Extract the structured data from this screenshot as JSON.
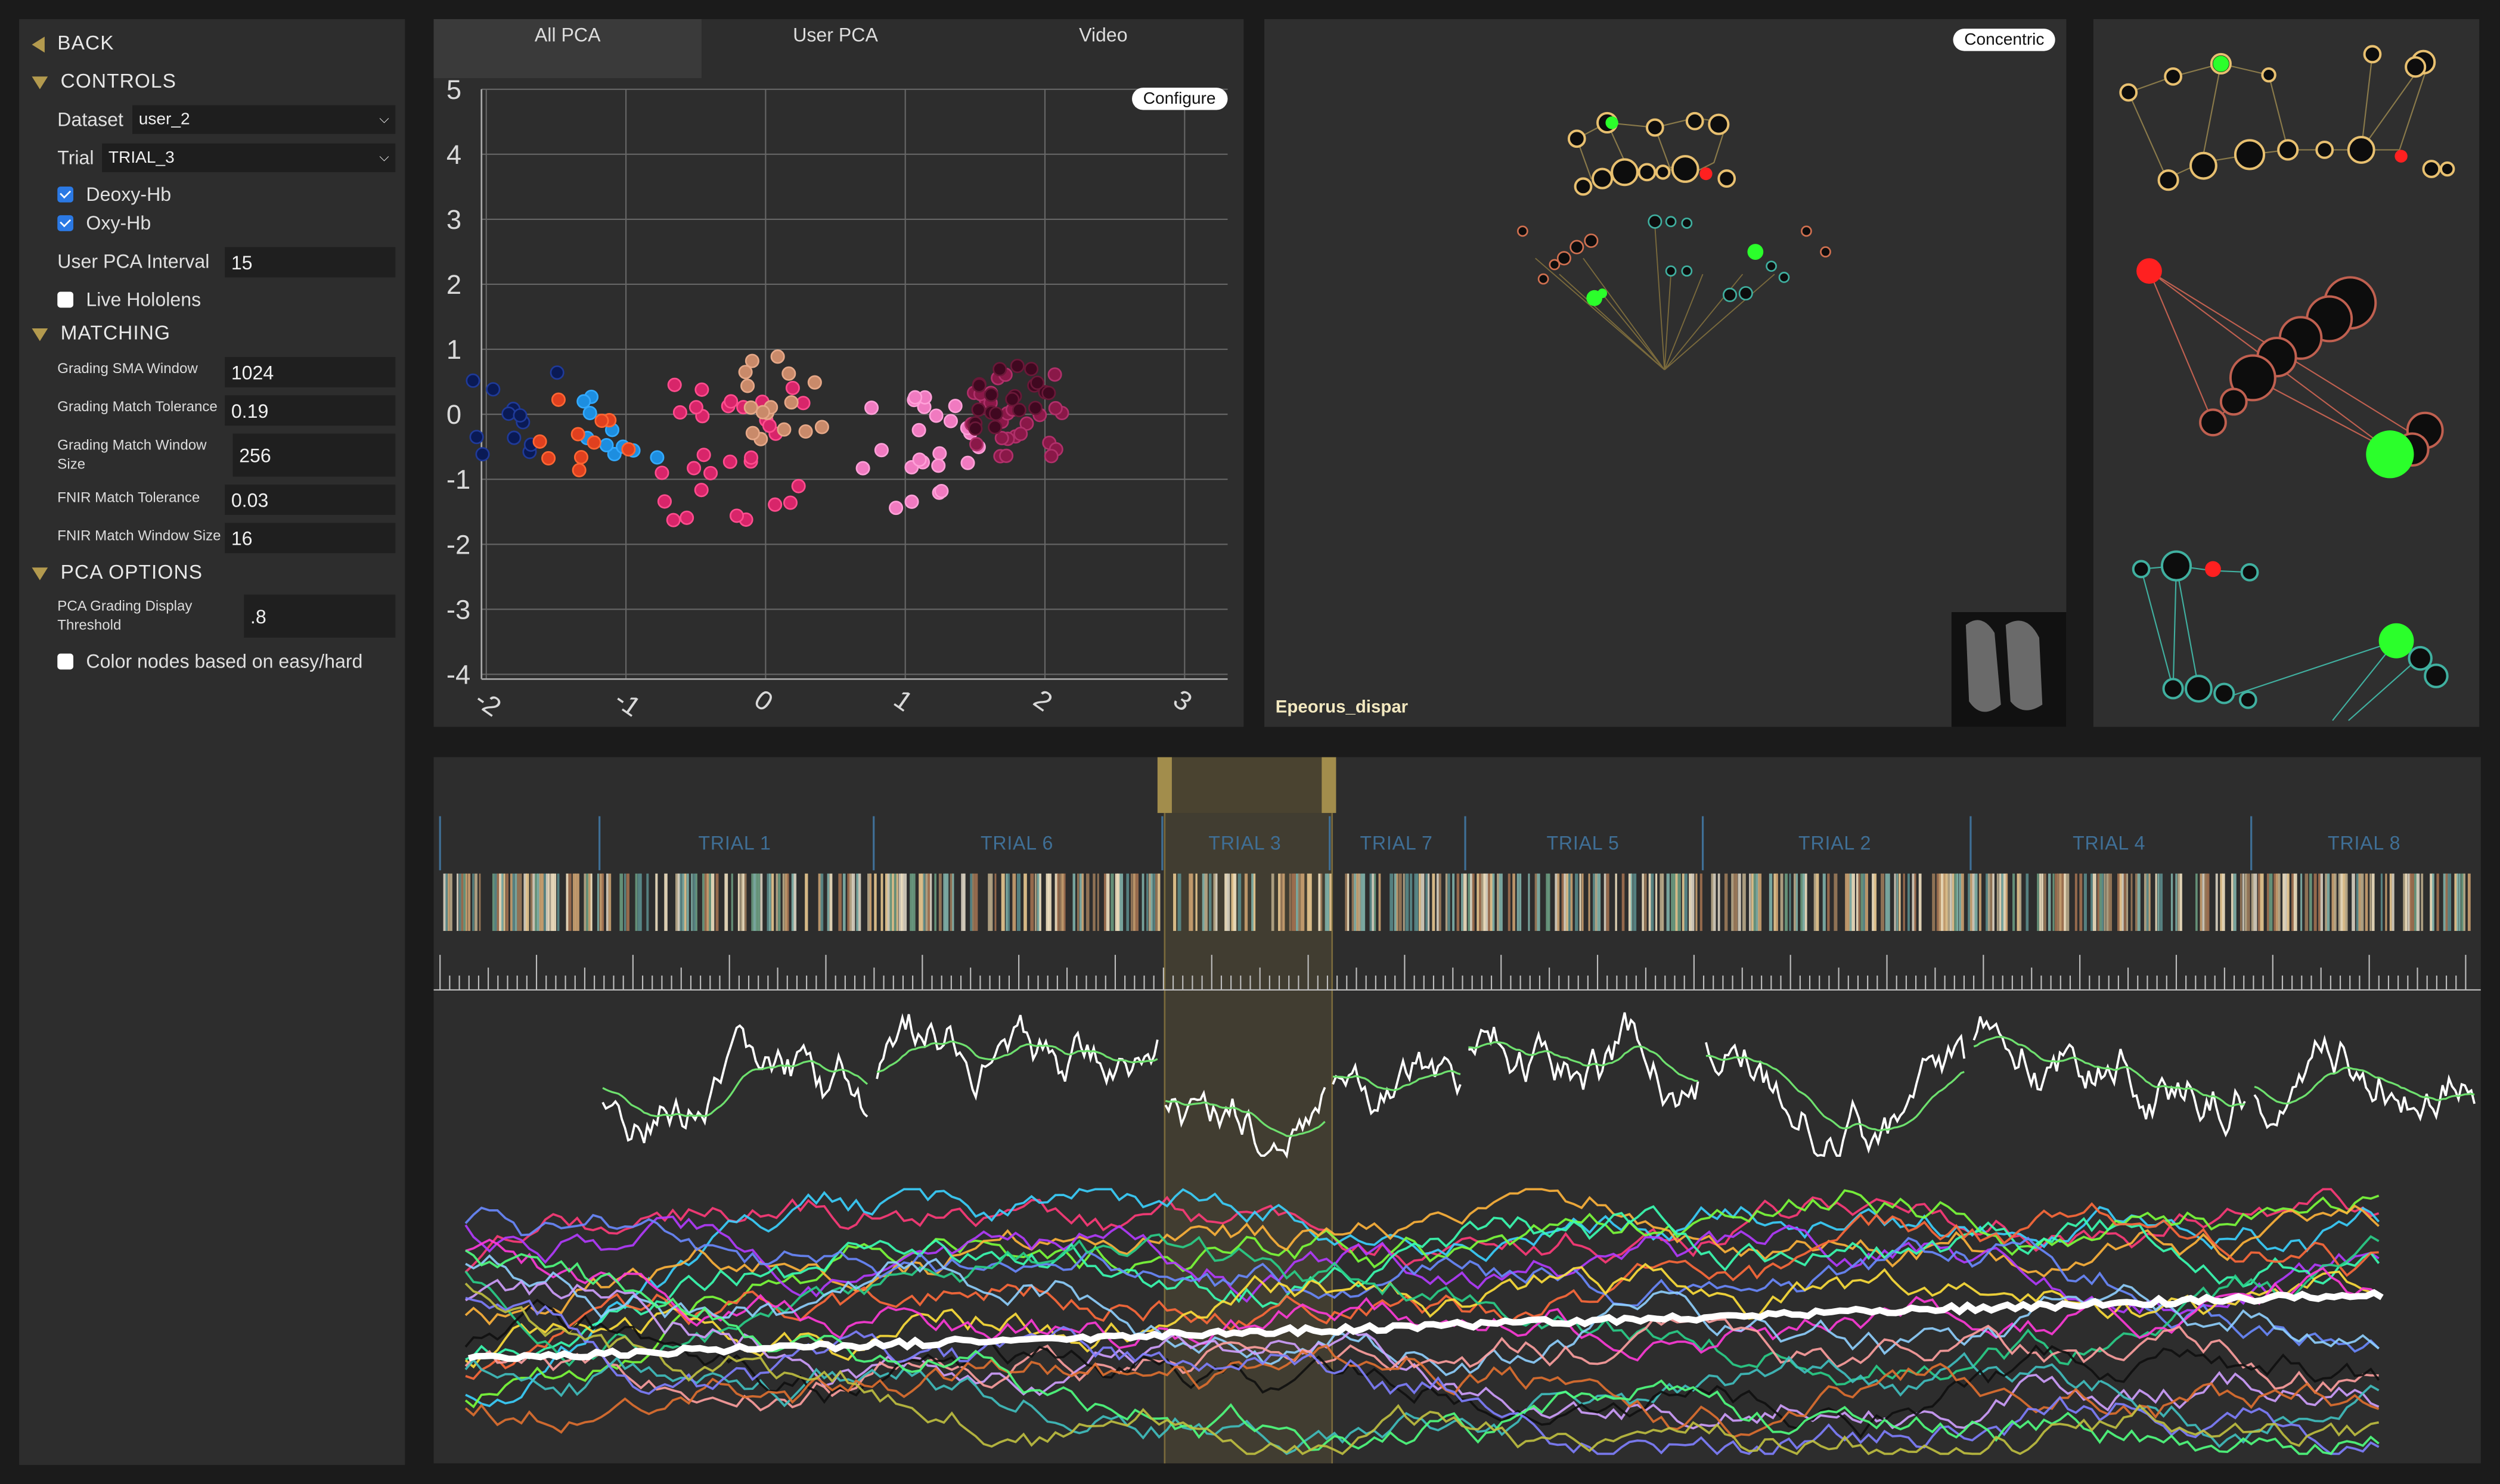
{
  "sidebar": {
    "back_label": "BACK",
    "controls": {
      "title": "CONTROLS",
      "dataset_label": "Dataset",
      "dataset_value": "user_2",
      "trial_label": "Trial",
      "trial_value": "TRIAL_3",
      "deoxy_label": "Deoxy-Hb",
      "deoxy_checked": true,
      "oxy_label": "Oxy-Hb",
      "oxy_checked": true,
      "pca_interval_label": "User PCA Interval",
      "pca_interval_value": "15",
      "live_hololens_label": "Live Hololens",
      "live_hololens_checked": false
    },
    "matching": {
      "title": "MATCHING",
      "sma_window_label": "Grading SMA Window",
      "sma_window_value": "1024",
      "match_tolerance_label": "Grading Match Tolerance",
      "match_tolerance_value": "0.19",
      "match_window_size_label": "Grading Match Window Size",
      "match_window_size_value": "256",
      "fnir_tolerance_label": "FNIR Match Tolerance",
      "fnir_tolerance_value": "0.03",
      "fnir_window_size_label": "FNIR Match Window Size",
      "fnir_window_size_value": "16"
    },
    "pca_options": {
      "title": "PCA OPTIONS",
      "display_threshold_label": "PCA Grading Display Threshold",
      "display_threshold_value": ".8",
      "color_nodes_label": "Color nodes based on easy/hard",
      "color_nodes_checked": false
    }
  },
  "tabs": [
    {
      "label": "All PCA",
      "active": true
    },
    {
      "label": "User PCA",
      "active": false
    },
    {
      "label": "Video",
      "active": false
    }
  ],
  "pca_panel": {
    "configure_label": "Configure",
    "x_ticks": [
      "-2",
      "-1",
      "0",
      "1",
      "2",
      "3"
    ],
    "y_ticks": [
      "5",
      "4",
      "3",
      "2",
      "1",
      "0",
      "-1",
      "-2",
      "-3",
      "-4"
    ]
  },
  "graph_panel": {
    "layout_button": "Concentric",
    "caption": "Epeorus_dispar"
  },
  "timeline": {
    "trials": [
      "TRIAL 1",
      "TRIAL 6",
      "TRIAL 3",
      "TRIAL 7",
      "TRIAL 5",
      "TRIAL 2",
      "TRIAL 4",
      "TRIAL 8"
    ],
    "selected_trial": "TRIAL 3"
  },
  "colors": {
    "accent": "#b39a4e",
    "panel": "#2d2d2d",
    "trial_label": "#3f6f96",
    "highlight_node": "#2bff2b",
    "alert_node": "#ff2020"
  }
}
